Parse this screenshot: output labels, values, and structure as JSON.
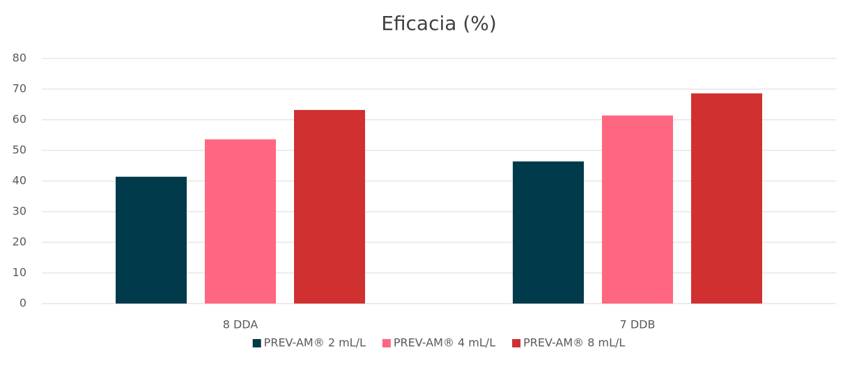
{
  "chart_data": {
    "type": "bar",
    "title": "Eficacia (%)",
    "categories": [
      "8 DDA",
      "7 DDB"
    ],
    "series": [
      {
        "name": "PREV-AM® 2 mL/L",
        "color": "#013a4a",
        "values": [
          41.4,
          46.4
        ]
      },
      {
        "name": "PREV-AM® 4 mL/L",
        "color": "#ff6680",
        "values": [
          53.6,
          61.4
        ]
      },
      {
        "name": "PREV-AM® 8 mL/L",
        "color": "#d03030",
        "values": [
          63.2,
          68.6
        ]
      }
    ],
    "ylim": [
      0,
      80
    ],
    "yticks": [
      0,
      10,
      20,
      30,
      40,
      50,
      60,
      70,
      80
    ],
    "grid": true,
    "legend": "bottom"
  }
}
